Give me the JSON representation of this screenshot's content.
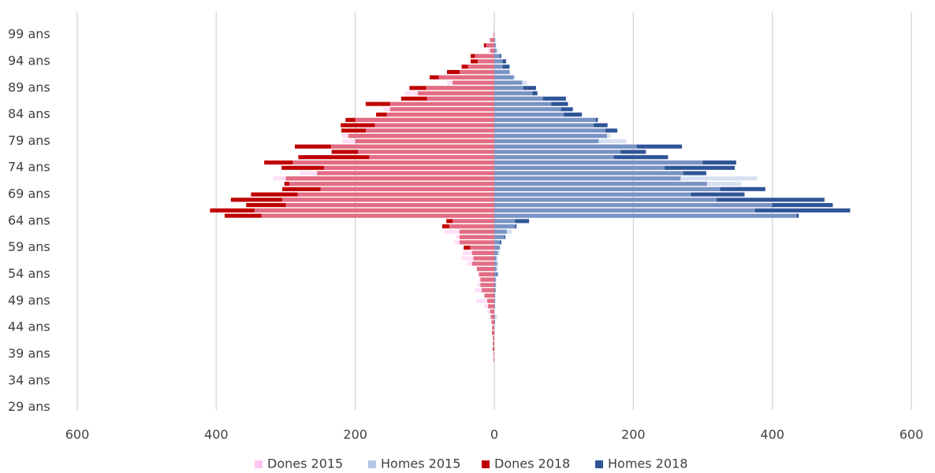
{
  "chart_data": {
    "type": "bar",
    "orientation": "horizontal",
    "categories": [
      "29 ans",
      null,
      null,
      null,
      null,
      "34 ans",
      null,
      null,
      null,
      null,
      "39 ans",
      null,
      null,
      null,
      null,
      "44 ans",
      null,
      null,
      null,
      null,
      "49 ans",
      null,
      null,
      null,
      null,
      "54 ans",
      null,
      null,
      null,
      null,
      "59 ans",
      null,
      null,
      null,
      null,
      "64 ans",
      null,
      null,
      null,
      null,
      "69 ans",
      null,
      null,
      null,
      null,
      "74 ans",
      null,
      null,
      null,
      null,
      "79 ans",
      null,
      null,
      null,
      null,
      "84 ans",
      null,
      null,
      null,
      null,
      "89 ans",
      null,
      null,
      null,
      null,
      "94 ans",
      null,
      null,
      null,
      null,
      "99 ans",
      null
    ],
    "series": [
      {
        "name": "Dones 2015",
        "color": "#ffc5f0",
        "values": [
          0,
          0,
          0,
          0,
          0,
          0,
          0,
          0,
          0,
          -3,
          -2,
          -1,
          -2,
          -2,
          -2,
          -3,
          -4,
          -5,
          -10,
          -14,
          -26,
          -15,
          -28,
          -24,
          -22,
          -24,
          -25,
          -40,
          -47,
          -45,
          -35,
          -58,
          -55,
          -72,
          -65,
          -60,
          -335,
          -345,
          -300,
          -305,
          -283,
          -250,
          -295,
          -318,
          -280,
          -245,
          -290,
          -180,
          -196,
          -235,
          -218,
          -219,
          -185,
          -172,
          -200,
          -155,
          -160,
          -150,
          -97,
          -129,
          -98,
          -68,
          -80,
          -50,
          -38,
          -24,
          -28,
          -9,
          -12,
          -8,
          -2,
          -2
        ]
      },
      {
        "name": "Homes 2015",
        "color": "#b4c7e7",
        "values": [
          0,
          0,
          0,
          0,
          0,
          0,
          0,
          0,
          0,
          0,
          0,
          0,
          0,
          0,
          0,
          1,
          1,
          4,
          1,
          1,
          2,
          2,
          2,
          3,
          3,
          4,
          5,
          6,
          5,
          8,
          9,
          8,
          15,
          25,
          30,
          30,
          435,
          375,
          400,
          320,
          283,
          325,
          355,
          378,
          272,
          245,
          300,
          172,
          182,
          205,
          190,
          168,
          160,
          143,
          146,
          100,
          96,
          82,
          70,
          55,
          42,
          47,
          30,
          22,
          12,
          12,
          8,
          6,
          3,
          2,
          1,
          0
        ]
      },
      {
        "name": "Dones 2018",
        "color": "#c00000",
        "values": [
          0,
          0,
          0,
          0,
          0,
          0,
          0,
          0,
          0,
          -1,
          -1,
          -2,
          -2,
          -2,
          -3,
          -3,
          -4,
          -5,
          -6,
          -9,
          -10,
          -14,
          -18,
          -20,
          -20,
          -22,
          -25,
          -32,
          -30,
          -32,
          -44,
          -50,
          -50,
          -50,
          -75,
          -69,
          -388,
          -409,
          -357,
          -379,
          -350,
          -305,
          -302,
          -300,
          -255,
          -306,
          -331,
          -282,
          -234,
          -287,
          -200,
          -210,
          -220,
          -221,
          -214,
          -170,
          -150,
          -185,
          -134,
          -110,
          -122,
          -60,
          -93,
          -68,
          -47,
          -34,
          -34,
          -6,
          -15,
          -6,
          -1,
          0
        ]
      },
      {
        "name": "Homes 2018",
        "color": "#2f5597",
        "values": [
          0,
          0,
          0,
          0,
          0,
          0,
          0,
          0,
          0,
          0,
          0,
          0,
          0,
          0,
          0,
          0,
          1,
          1,
          0,
          1,
          1,
          1,
          2,
          2,
          2,
          5,
          3,
          4,
          3,
          5,
          8,
          10,
          16,
          18,
          32,
          50,
          438,
          512,
          487,
          475,
          360,
          390,
          306,
          268,
          305,
          346,
          348,
          250,
          218,
          270,
          150,
          162,
          177,
          163,
          149,
          126,
          113,
          106,
          103,
          62,
          60,
          40,
          28,
          22,
          22,
          17,
          10,
          3,
          2,
          1,
          0,
          0
        ]
      }
    ],
    "xlim": [
      -600,
      600
    ],
    "xticks": [
      {
        "value": -600,
        "label": "600"
      },
      {
        "value": -400,
        "label": "400"
      },
      {
        "value": -200,
        "label": "200"
      },
      0,
      200,
      400,
      600
    ],
    "grid": true,
    "legend": "bottom"
  }
}
